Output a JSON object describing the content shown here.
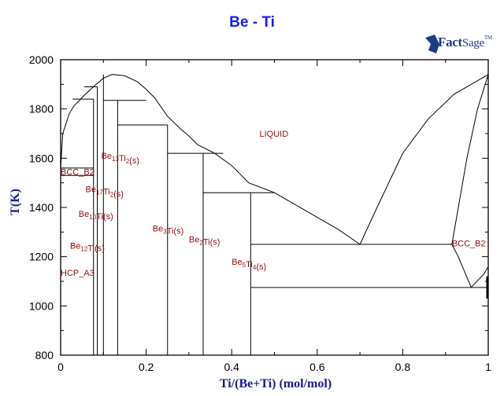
{
  "chart_data": {
    "type": "line",
    "title": "Be - Ti",
    "xlabel": "Ti/(Be+Ti) (mol/mol)",
    "ylabel": "T(K)",
    "xlim": [
      0,
      1
    ],
    "ylim": [
      800,
      2000
    ],
    "xticks": [
      0,
      0.2,
      0.4,
      0.6,
      0.8,
      1
    ],
    "xtick_labels": [
      "0",
      "0.2",
      "0.4",
      "0.6",
      "0.8",
      "1"
    ],
    "yticks": [
      800,
      1000,
      1200,
      1400,
      1600,
      1800,
      2000
    ],
    "ytick_labels": [
      "800",
      "1000",
      "1200",
      "1400",
      "1600",
      "1800",
      "2000"
    ],
    "grid": false,
    "liquidus_left": [
      [
        0.0,
        1560
      ],
      [
        0.005,
        1700
      ],
      [
        0.02,
        1780
      ],
      [
        0.03,
        1810
      ],
      [
        0.055,
        1855
      ],
      [
        0.08,
        1895
      ],
      [
        0.1,
        1925
      ],
      [
        0.12,
        1940
      ],
      [
        0.15,
        1935
      ],
      [
        0.18,
        1910
      ],
      [
        0.2,
        1880
      ],
      [
        0.22,
        1845
      ],
      [
        0.25,
        1770
      ],
      [
        0.28,
        1720
      ],
      [
        0.3,
        1690
      ],
      [
        0.32,
        1655
      ],
      [
        0.36,
        1620
      ],
      [
        0.4,
        1570
      ],
      [
        0.44,
        1500
      ],
      [
        0.5,
        1460
      ],
      [
        0.58,
        1380
      ],
      [
        0.65,
        1310
      ],
      [
        0.7,
        1250
      ]
    ],
    "liquidus_right": [
      [
        0.7,
        1250
      ],
      [
        0.74,
        1400
      ],
      [
        0.8,
        1620
      ],
      [
        0.86,
        1760
      ],
      [
        0.92,
        1860
      ],
      [
        1.0,
        1940
      ]
    ],
    "bcc_solvus": [
      [
        0.915,
        1250
      ],
      [
        0.93,
        1400
      ],
      [
        0.95,
        1600
      ],
      [
        0.975,
        1800
      ],
      [
        1.0,
        1940
      ]
    ],
    "bcc_lower_left": [
      [
        0.915,
        1250
      ],
      [
        0.93,
        1200
      ],
      [
        0.96,
        1075
      ]
    ],
    "bcc_lower_right": [
      [
        0.96,
        1075
      ],
      [
        0.99,
        1130
      ],
      [
        1.0,
        1160
      ]
    ],
    "compound_lines": [
      {
        "name": "Be17Ti2",
        "x": 0.0769,
        "tmax": 1840
      },
      {
        "name": "Be12Ti",
        "x": 0.0857,
        "tmax": 1890
      },
      {
        "name": "Be10Ti",
        "x": 0.1,
        "tmax": 1940
      },
      {
        "name": "Be13Ti2",
        "x": 0.1333,
        "tmax": 1835
      },
      {
        "name": "Be3Ti",
        "x": 0.25,
        "tmax": 1735
      },
      {
        "name": "Be2Ti",
        "x": 0.3333,
        "tmax": 1620
      },
      {
        "name": "Be5Ti4",
        "x": 0.4444,
        "tmax": 1460
      }
    ],
    "horizontal_lines": [
      {
        "t": 1840,
        "x1": 0.028,
        "x2": 0.0769
      },
      {
        "t": 1890,
        "x1": 0.055,
        "x2": 0.0857
      },
      {
        "t": 1835,
        "x1": 0.1,
        "x2": 0.2
      },
      {
        "t": 1735,
        "x1": 0.1333,
        "x2": 0.25
      },
      {
        "t": 1620,
        "x1": 0.25,
        "x2": 0.38
      },
      {
        "t": 1460,
        "x1": 0.3333,
        "x2": 0.5
      },
      {
        "t": 1250,
        "x1": 0.4444,
        "x2": 0.915
      },
      {
        "t": 1075,
        "x1": 0.4444,
        "x2": 1.0
      },
      {
        "t": 1560,
        "x1": 0.0,
        "x2": 0.0769
      },
      {
        "t": 1530,
        "x1": 0.0,
        "x2": 0.0769
      }
    ],
    "phase_labels": [
      {
        "text": "LIQUID",
        "x": 0.465,
        "t": 1700
      },
      {
        "text": "BCC_B2",
        "x": 0.0,
        "t": 1545
      },
      {
        "text": "BCC_B2",
        "x": 0.915,
        "t": 1255
      },
      {
        "text": "HCP_A3",
        "x": 0.0,
        "t": 1135
      },
      {
        "text": "Be13Ti2(s)",
        "x": 0.095,
        "t": 1610
      },
      {
        "text": "Be17Ti2(s)",
        "x": 0.058,
        "t": 1475
      },
      {
        "text": "Be10Ti(s)",
        "x": 0.042,
        "t": 1375
      },
      {
        "text": "Be12Ti(s)",
        "x": 0.022,
        "t": 1245
      },
      {
        "text": "Be3Ti(s)",
        "x": 0.215,
        "t": 1315
      },
      {
        "text": "Be2Ti(s)",
        "x": 0.3,
        "t": 1270
      },
      {
        "text": "Be5Ti4(s)",
        "x": 0.4,
        "t": 1180
      }
    ]
  },
  "header": {
    "title": "Be - Ti",
    "logo_fact": "Fact",
    "logo_sage": "Sage",
    "logo_tm": "TM"
  },
  "axes": {
    "xlabel": "Ti/(Be+Ti) (mol/mol)",
    "ylabel": "T(K)"
  },
  "colors": {
    "title": "#1a1aff",
    "axis_label": "#1a1a8c",
    "phase_label": "#8b1010",
    "logo": "#1e3c84",
    "line": "#000000"
  }
}
